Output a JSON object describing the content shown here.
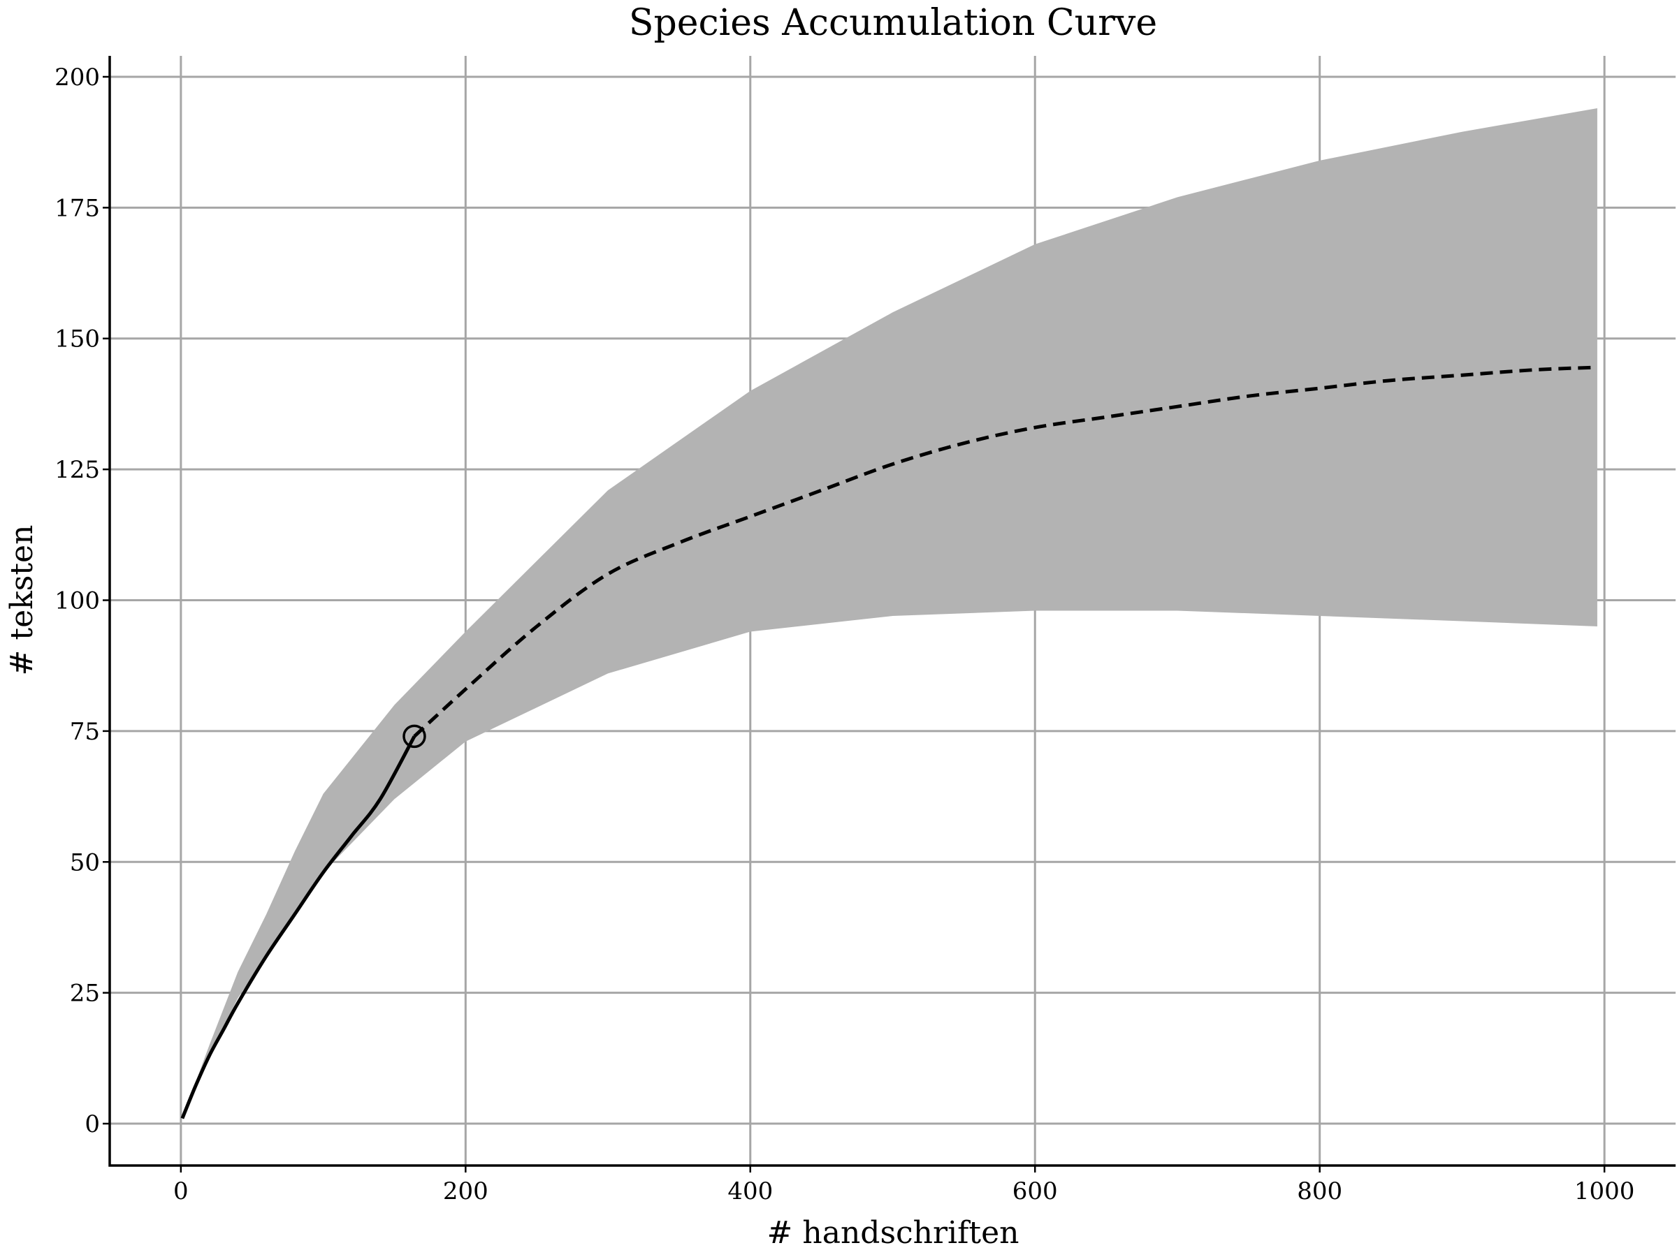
{
  "chart_data": {
    "type": "line",
    "title": "Species Accumulation Curve",
    "xlabel": "# handschriften",
    "ylabel": "# teksten",
    "xlim": [
      -50,
      1050
    ],
    "ylim": [
      -8,
      204
    ],
    "x_ticks": [
      0,
      200,
      400,
      600,
      800,
      1000
    ],
    "y_ticks": [
      0,
      25,
      50,
      75,
      100,
      125,
      150,
      175,
      200
    ],
    "grid": true,
    "legend": "none",
    "colors": {
      "line": "#000000",
      "band": "#b3b3b3",
      "grid": "#a6a6a6"
    },
    "series": [
      {
        "style": "solid",
        "x": [
          1,
          10,
          20,
          30,
          40,
          60,
          80,
          100,
          120,
          140,
          164
        ],
        "y": [
          1,
          7,
          13,
          18,
          23,
          32,
          40,
          48,
          55,
          62,
          74
        ]
      },
      {
        "style": "dashed",
        "x": [
          164,
          200,
          250,
          300,
          350,
          400,
          450,
          500,
          550,
          600,
          650,
          700,
          750,
          800,
          850,
          900,
          950,
          995
        ],
        "y": [
          74,
          83,
          95,
          105,
          111,
          116,
          121,
          126,
          130,
          133,
          135,
          137,
          139,
          140.5,
          142,
          143,
          144,
          144.5
        ]
      }
    ],
    "band": {
      "x": [
        1,
        20,
        40,
        60,
        80,
        100,
        150,
        200,
        300,
        400,
        500,
        600,
        700,
        800,
        900,
        995
      ],
      "upper": [
        1,
        15,
        29,
        40,
        52,
        63,
        80,
        94,
        121,
        140,
        155,
        168,
        177,
        184,
        189.5,
        194
      ],
      "lower": [
        1,
        13,
        24,
        32,
        40,
        48,
        62,
        73,
        86,
        94,
        97,
        98,
        98,
        97,
        96,
        95
      ]
    },
    "marker": {
      "x": 164,
      "y": 74,
      "shape": "open-circle"
    }
  }
}
